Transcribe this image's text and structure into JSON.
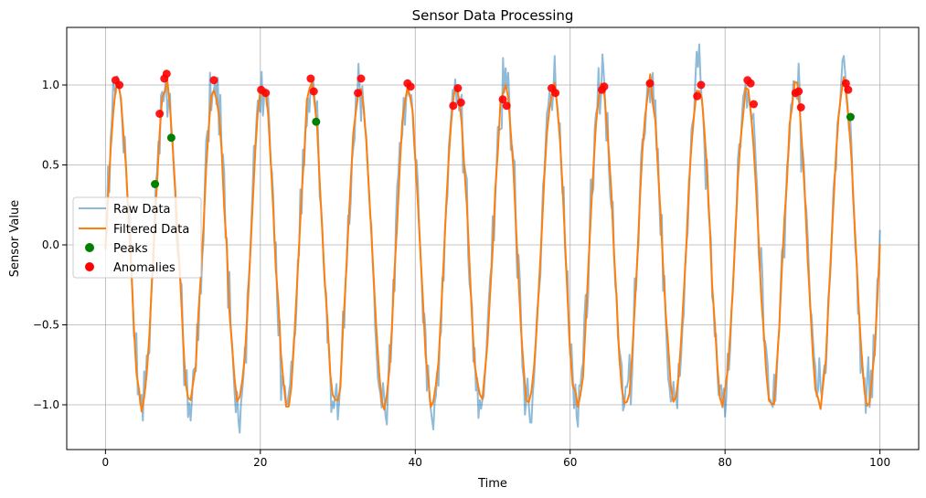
{
  "chart_data": {
    "type": "line",
    "title": "Sensor Data Processing",
    "xlabel": "Time",
    "ylabel": "Sensor Value",
    "xlim": [
      -5,
      105
    ],
    "ylim": [
      -1.28,
      1.36
    ],
    "x_ticks": [
      0,
      20,
      40,
      60,
      80,
      100
    ],
    "y_ticks": [
      -1.0,
      -0.5,
      0.0,
      0.5,
      1.0
    ],
    "x_tick_labels": [
      "0",
      "20",
      "40",
      "60",
      "80",
      "100"
    ],
    "y_tick_labels": [
      "−1.0",
      "−0.5",
      "0.0",
      "0.5",
      "1.0"
    ],
    "grid": true,
    "legend_position": "center-left",
    "signal_model": {
      "function": "sin",
      "frequency": 0.16,
      "x_start": 0,
      "x_end": 100
    },
    "series": [
      {
        "name": "Raw Data",
        "kind": "line",
        "color": "#1f77b4",
        "opacity": 0.5,
        "noise_std": 0.1
      },
      {
        "name": "Filtered Data",
        "kind": "line",
        "color": "#ff7f0e",
        "noise_std": 0.03
      },
      {
        "name": "Peaks",
        "kind": "scatter",
        "color": "#008000",
        "points": [
          [
            6.4,
            0.38
          ],
          [
            8.5,
            0.67
          ],
          [
            27.2,
            0.77
          ],
          [
            96.2,
            0.8
          ]
        ]
      },
      {
        "name": "Anomalies",
        "kind": "scatter",
        "color": "#ff0000",
        "points": [
          [
            1.3,
            1.03
          ],
          [
            1.8,
            1.0
          ],
          [
            7.0,
            0.82
          ],
          [
            7.6,
            1.04
          ],
          [
            7.9,
            1.07
          ],
          [
            14.0,
            1.03
          ],
          [
            20.1,
            0.97
          ],
          [
            20.7,
            0.95
          ],
          [
            26.5,
            1.04
          ],
          [
            26.9,
            0.96
          ],
          [
            32.6,
            0.95
          ],
          [
            33.0,
            1.04
          ],
          [
            39.0,
            1.01
          ],
          [
            39.4,
            0.99
          ],
          [
            44.9,
            0.87
          ],
          [
            45.5,
            0.98
          ],
          [
            45.9,
            0.89
          ],
          [
            51.3,
            0.91
          ],
          [
            51.8,
            0.87
          ],
          [
            57.6,
            0.98
          ],
          [
            58.1,
            0.95
          ],
          [
            64.1,
            0.97
          ],
          [
            64.4,
            0.99
          ],
          [
            70.3,
            1.01
          ],
          [
            76.4,
            0.93
          ],
          [
            76.9,
            1.0
          ],
          [
            82.9,
            1.03
          ],
          [
            83.3,
            1.01
          ],
          [
            83.7,
            0.88
          ],
          [
            89.1,
            0.95
          ],
          [
            89.5,
            0.96
          ],
          [
            89.8,
            0.86
          ],
          [
            95.6,
            1.01
          ],
          [
            95.9,
            0.97
          ]
        ]
      }
    ]
  }
}
